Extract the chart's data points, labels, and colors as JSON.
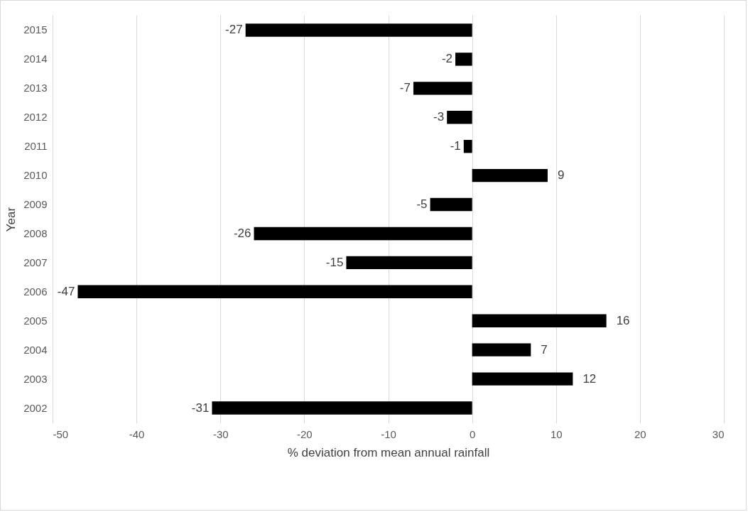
{
  "chart_data": {
    "type": "bar",
    "orientation": "horizontal",
    "xlabel": "% deviation from mean annual rainfall",
    "ylabel": "Year",
    "categories": [
      "2015",
      "2014",
      "2013",
      "2012",
      "2011",
      "2010",
      "2009",
      "2008",
      "2007",
      "2006",
      "2005",
      "2004",
      "2003",
      "2002"
    ],
    "values": [
      -27,
      -2,
      -7,
      -3,
      -1,
      9,
      -5,
      -26,
      -15,
      -47,
      16,
      7,
      12,
      -31
    ],
    "color": "#000000",
    "data_labels": true,
    "xlim": [
      -50,
      30
    ],
    "xticks": [
      -50,
      -40,
      -30,
      -20,
      -10,
      0,
      10,
      20,
      30
    ],
    "grid": "x"
  }
}
